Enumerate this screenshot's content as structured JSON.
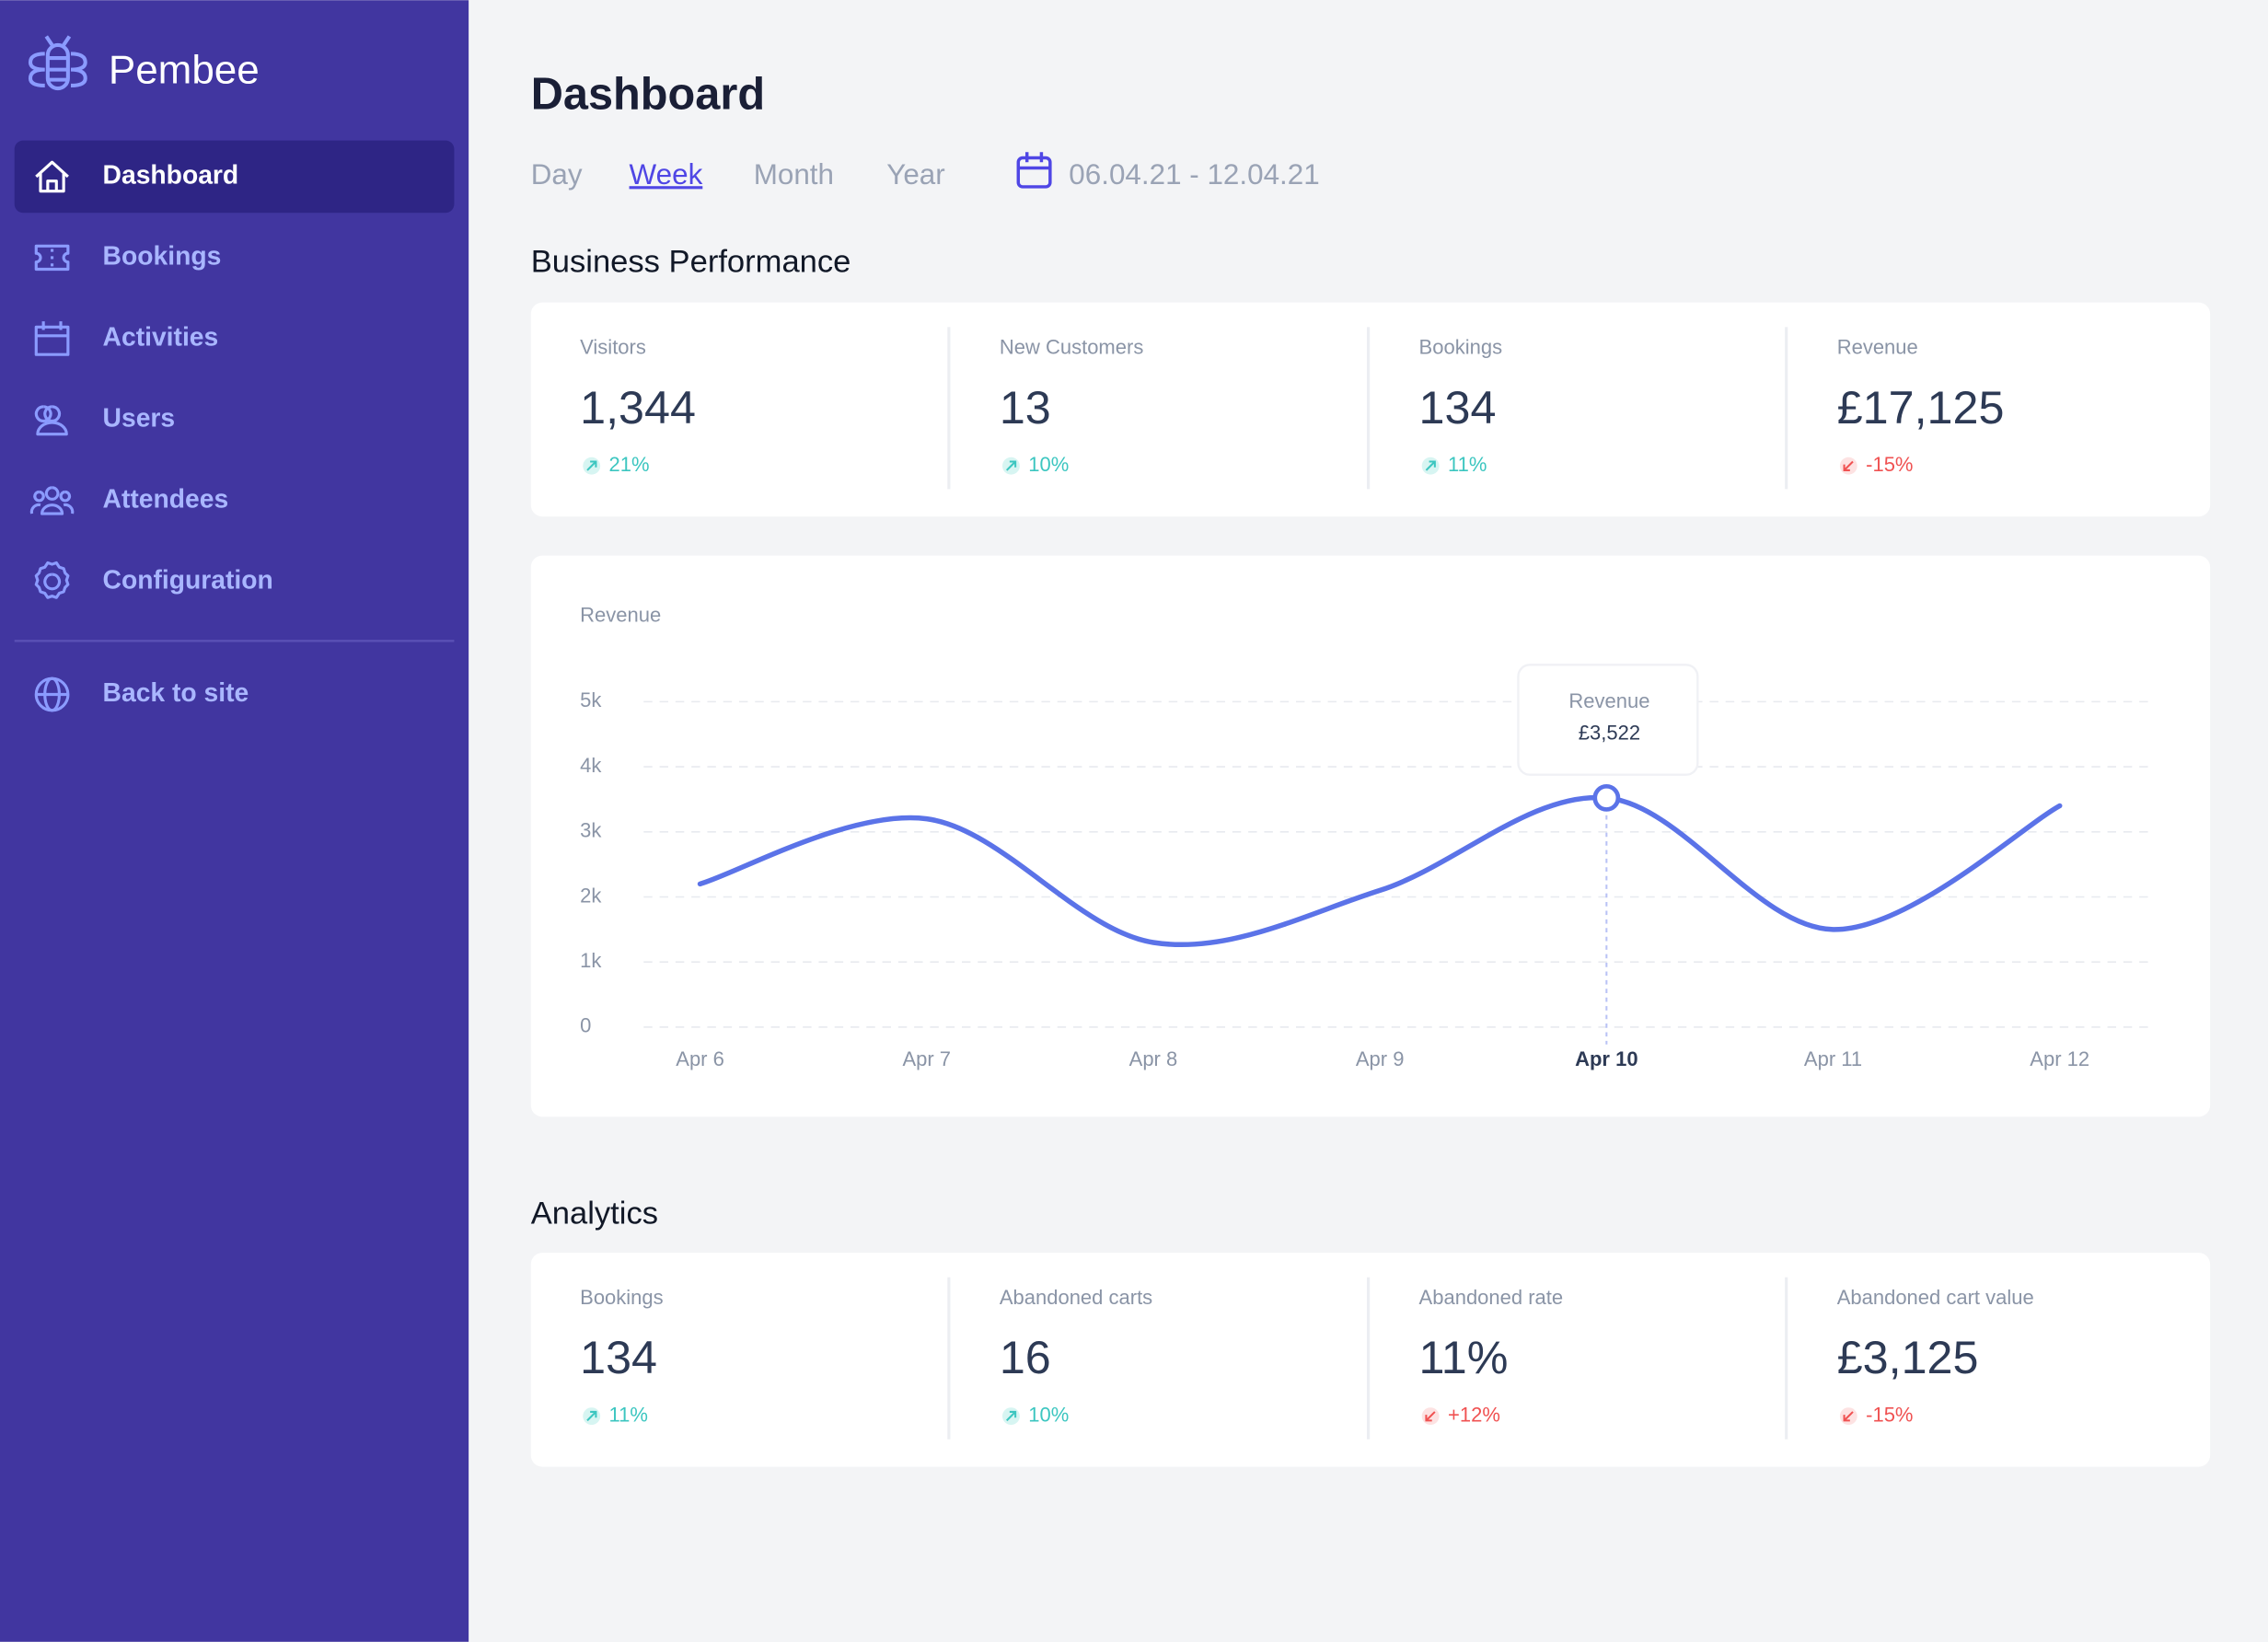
{
  "sidebar": {
    "brand": "Pembee",
    "nav": [
      "Dashboard",
      "Bookings",
      "Activities",
      "Users",
      "Attendees",
      "Configuration"
    ],
    "footer_link": "Back to site"
  },
  "header": {
    "title": "Dashboard",
    "periods": [
      "Day",
      "Week",
      "Month",
      "Year"
    ],
    "date_range": "06.04.21 - 12.04.21"
  },
  "performance": {
    "title": "Business Performance",
    "metrics": [
      {
        "label": "Visitors",
        "value": "1,344",
        "change": "21%",
        "trend": "up"
      },
      {
        "label": "New Customers",
        "value": "13",
        "change": "10%",
        "trend": "up"
      },
      {
        "label": "Bookings",
        "value": "134",
        "change": "11%",
        "trend": "up"
      },
      {
        "label": "Revenue",
        "value": "£17,125",
        "change": "-15%",
        "trend": "down"
      }
    ]
  },
  "chart_data": {
    "type": "line",
    "title": "Revenue",
    "categories": [
      "Apr 6",
      "Apr 7",
      "Apr 8",
      "Apr 9",
      "Apr 10",
      "Apr 11",
      "Apr 12"
    ],
    "series": [
      {
        "name": "Revenue",
        "color": "#5b73e8",
        "values": [
          2200,
          3200,
          1300,
          2100,
          3522,
          1500,
          3400
        ],
        "value_labels": [
          null,
          null,
          null,
          null,
          "£3,522",
          null,
          null
        ]
      }
    ],
    "ylim": [
      0,
      5000
    ],
    "yticks": [
      {
        "value": 0,
        "label": "0"
      },
      {
        "value": 1000,
        "label": "1k"
      },
      {
        "value": 2000,
        "label": "2k"
      },
      {
        "value": 3000,
        "label": "3k"
      },
      {
        "value": 4000,
        "label": "4k"
      },
      {
        "value": 5000,
        "label": "5k"
      }
    ],
    "grid": true
  },
  "analytics": {
    "title": "Analytics",
    "metrics": [
      {
        "label": "Bookings",
        "value": "134",
        "change": "11%",
        "trend": "up"
      },
      {
        "label": "Abandoned carts",
        "value": "16",
        "change": "10%",
        "trend": "up"
      },
      {
        "label": "Abandoned rate",
        "value": "11%",
        "change": "+12%",
        "trend": "down"
      },
      {
        "label": "Abandoned cart value",
        "value": "£3,125",
        "change": "-15%",
        "trend": "down"
      }
    ]
  }
}
